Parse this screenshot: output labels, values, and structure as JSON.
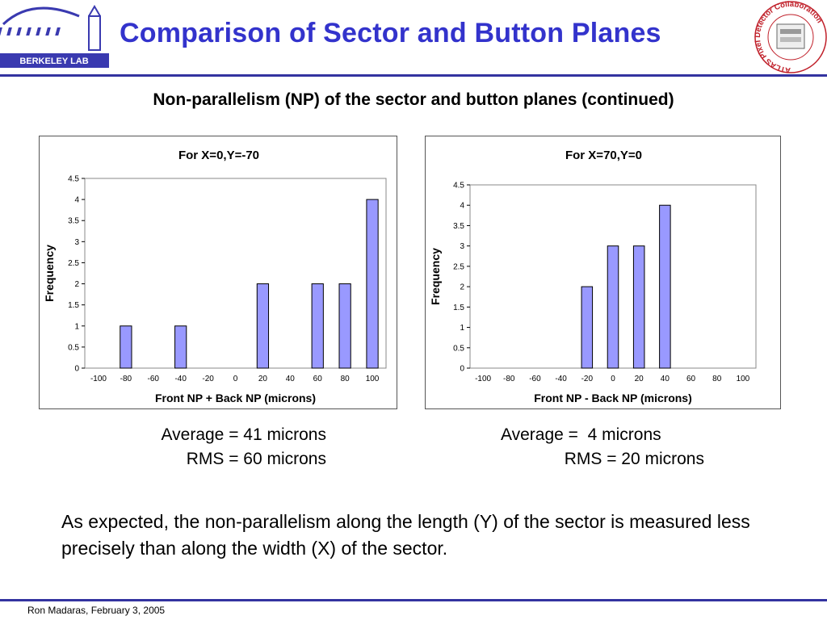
{
  "slide": {
    "title": "Comparison of Sector and Button Planes",
    "subtitle": "Non-parallelism (NP) of the sector and button planes (continued)",
    "conclusion": "As expected, the non-parallelism along the length (Y) of the sector is measured less precisely than along the width (X) of the sector.",
    "footer": "Ron Madaras, February 3, 2005"
  },
  "logos": {
    "left_text": "BERKELEY LAB",
    "right_text": "ATLAS Pixel Detector Collaboration"
  },
  "colors": {
    "title": "#3333cc",
    "rule": "#3333a0",
    "bar_fill": "#9999ff",
    "plot_bg": "#ffffff"
  },
  "stats_left": {
    "average": "Average = 41 microns",
    "rms": "RMS = 60 microns"
  },
  "stats_right": {
    "average": "Average =  4 microns",
    "rms": "RMS = 20 microns"
  },
  "chart_data": [
    {
      "type": "bar",
      "title": "For X=0,Y=-70",
      "xlabel": "Front NP  + Back NP (microns)",
      "ylabel": "Frequency",
      "categories": [
        "-100",
        "-80",
        "-60",
        "-40",
        "-20",
        "0",
        "20",
        "40",
        "60",
        "80",
        "100"
      ],
      "values": [
        0,
        1,
        0,
        1,
        0,
        0,
        2,
        0,
        2,
        2,
        4
      ],
      "yticks": [
        "0",
        "0.5",
        "1",
        "1.5",
        "2",
        "2.5",
        "3",
        "3.5",
        "4",
        "4.5"
      ],
      "ylim": [
        0,
        4.5
      ],
      "grid": false,
      "legend": "none"
    },
    {
      "type": "bar",
      "title": "For X=70,Y=0",
      "xlabel": "Front NP  - Back NP (microns)",
      "ylabel": "Frequency",
      "categories": [
        "-100",
        "-80",
        "-60",
        "-40",
        "-20",
        "0",
        "20",
        "40",
        "60",
        "80",
        "100"
      ],
      "values": [
        0,
        0,
        0,
        0,
        2,
        3,
        3,
        4,
        0,
        0,
        0
      ],
      "yticks": [
        "0",
        "0.5",
        "1",
        "1.5",
        "2",
        "2.5",
        "3",
        "3.5",
        "4",
        "4.5"
      ],
      "ylim": [
        0,
        4.5
      ],
      "grid": false,
      "legend": "none"
    }
  ]
}
